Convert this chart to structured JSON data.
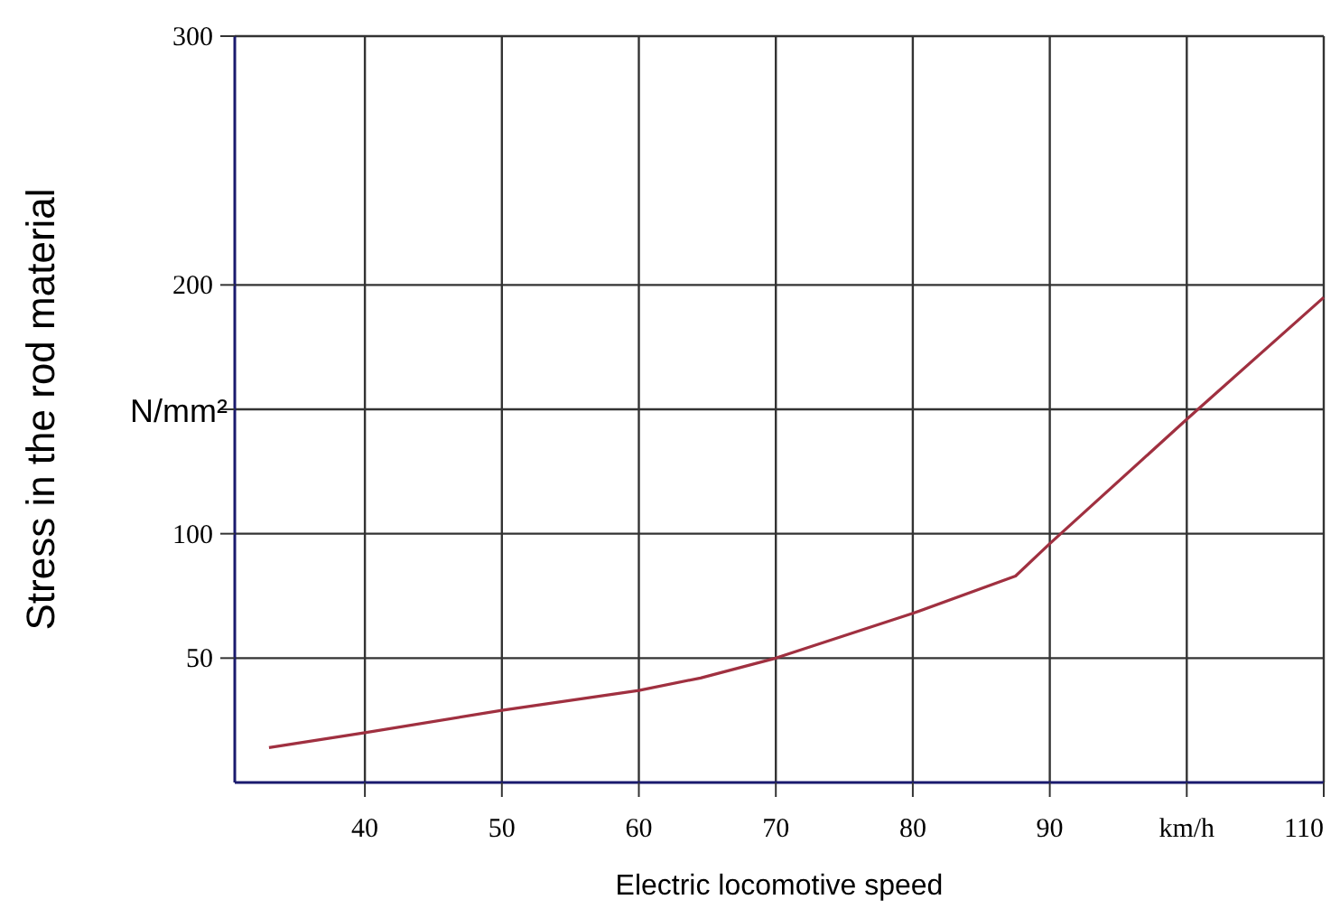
{
  "chart_data": {
    "type": "line",
    "xlabel": "Electric locomotive speed",
    "ylabel": "Stress in the rod material",
    "annotations": [
      "N/mm²"
    ],
    "x": [
      33,
      40,
      50,
      60,
      64.5,
      70,
      80,
      87.5,
      90,
      100,
      110
    ],
    "series": [
      {
        "color": "#a03040",
        "values": [
          14,
          20,
          29,
          37,
          42,
          50,
          68,
          83,
          96,
          146,
          195
        ]
      }
    ],
    "xlim": [
      30.5,
      110
    ],
    "xticks": [
      40,
      50,
      60,
      70,
      80,
      90,
      {
        "value": 100,
        "label": "km/h"
      },
      110
    ],
    "ylim": [
      0,
      300
    ],
    "yticks": [
      50,
      100,
      {
        "value": 150,
        "label": null
      },
      200,
      300
    ],
    "grid": true,
    "marker": "none",
    "line_style": "solid"
  }
}
